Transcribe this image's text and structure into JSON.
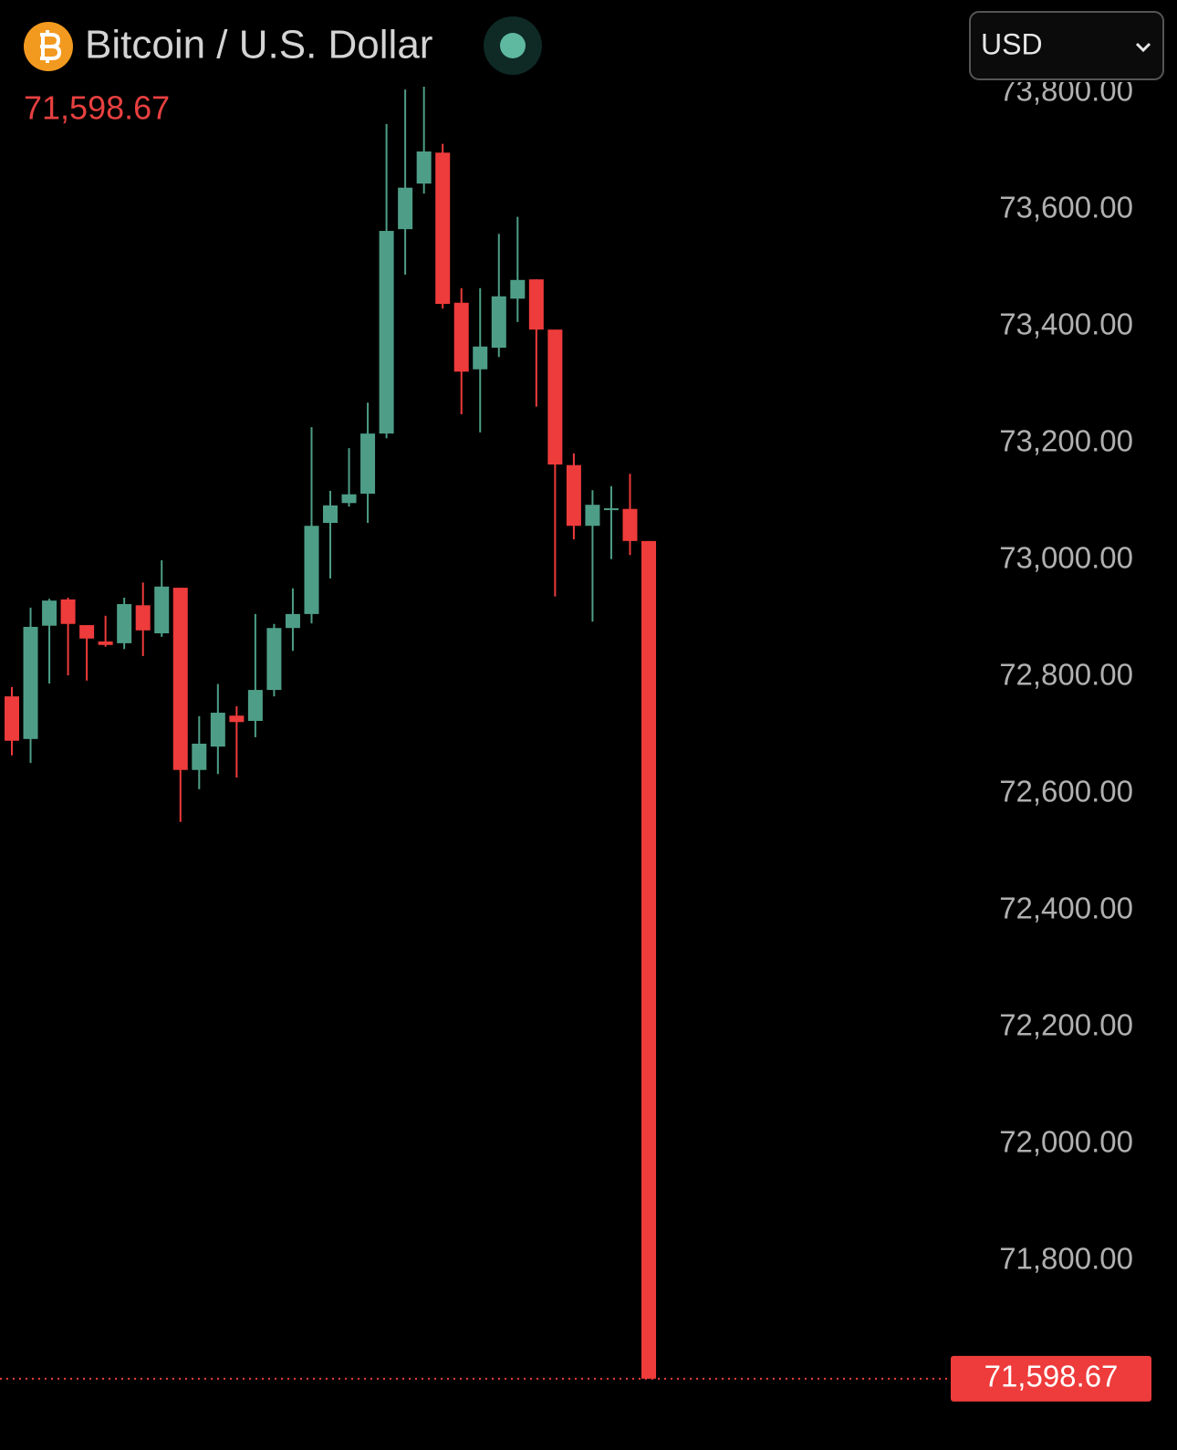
{
  "chart_data": {
    "type": "candlestick",
    "title": "Bitcoin / U.S. Dollar",
    "currency": "USD",
    "last_price": {
      "value": 71598.67,
      "label": "71,598.67"
    },
    "up_color": "#4e9e87",
    "down_color": "#ee3b3b",
    "open": [
      72767,
      72694,
      72888,
      72933,
      72889,
      72861,
      72858,
      72923,
      72875,
      72953,
      72641,
      72681,
      72734,
      72725,
      72778,
      72884,
      72908,
      73064,
      73098,
      73114,
      73217,
      73567,
      73645,
      73698,
      73441,
      73327,
      73364,
      73448,
      73481,
      73395,
      73163,
      73059,
      73086,
      73088,
      73033
    ],
    "high": [
      72783,
      72919,
      72934,
      72936,
      72889,
      72905,
      72936,
      72962,
      73000,
      72953,
      72733,
      72788,
      72750,
      72908,
      72891,
      72952,
      73228,
      73119,
      73192,
      73270,
      73747,
      73806,
      73811,
      73713,
      73466,
      73466,
      73559,
      73588,
      73481,
      73395,
      73183,
      73120,
      73127,
      73148,
      73033
    ],
    "low": [
      72666,
      72653,
      72789,
      72803,
      72794,
      72852,
      72848,
      72836,
      72869,
      72552,
      72608,
      72634,
      72628,
      72697,
      72767,
      72845,
      72892,
      72969,
      73092,
      73064,
      73209,
      73489,
      73628,
      73431,
      73250,
      73219,
      73348,
      73408,
      73263,
      72938,
      73036,
      72895,
      73002,
      73009,
      71598.67
    ],
    "close": [
      72691,
      72886,
      72931,
      72891,
      72866,
      72855,
      72925,
      72880,
      72955,
      72641,
      72686,
      72739,
      72723,
      72778,
      72884,
      72908,
      73059,
      73094,
      73113,
      73217,
      73564,
      73638,
      73700,
      73439,
      73323,
      73366,
      73452,
      73480,
      73395,
      73164,
      73059,
      73095,
      73089,
      73033,
      71598.67
    ],
    "ylim": [
      71540,
      73820
    ],
    "yticks": [
      {
        "value": 71800,
        "label": "71,800.00"
      },
      {
        "value": 72000,
        "label": "72,000.00"
      },
      {
        "value": 72200,
        "label": "72,200.00"
      },
      {
        "value": 72400,
        "label": "72,400.00"
      },
      {
        "value": 72600,
        "label": "72,600.00"
      },
      {
        "value": 72800,
        "label": "72,800.00"
      },
      {
        "value": 73000,
        "label": "73,000.00"
      },
      {
        "value": 73200,
        "label": "73,200.00"
      },
      {
        "value": 73400,
        "label": "73,400.00"
      },
      {
        "value": 73600,
        "label": "73,600.00"
      },
      {
        "value": 73800,
        "label": "73,800.00"
      }
    ]
  }
}
